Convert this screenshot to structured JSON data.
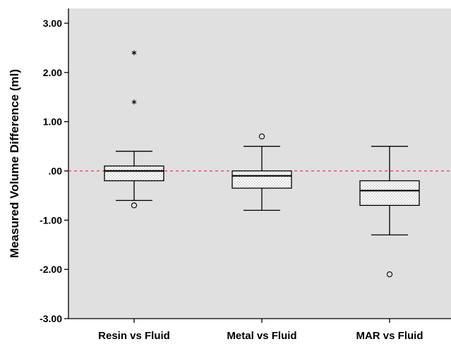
{
  "chart_data": {
    "type": "box",
    "ylabel": "Measured Volume Difference (ml)",
    "ylim": [
      -3,
      3.3
    ],
    "yticks": [
      3,
      2,
      1,
      0,
      -1,
      -2,
      -3
    ],
    "ytick_labels": [
      "3.00",
      "2.00",
      "1.00",
      ".00",
      "-1.00",
      "-2.00",
      "-3.00"
    ],
    "categories": [
      "Resin vs Fluid",
      "Metal vs Fluid",
      "MAR vs Fluid"
    ],
    "boxes": [
      {
        "whisker_low": -0.6,
        "q1": -0.2,
        "median": 0.0,
        "q3": 0.1,
        "whisker_high": 0.4,
        "outliers": [
          -0.7
        ],
        "extremes": [
          1.4,
          2.4
        ]
      },
      {
        "whisker_low": -0.8,
        "q1": -0.35,
        "median": -0.1,
        "q3": 0.0,
        "whisker_high": 0.5,
        "outliers": [
          0.7
        ],
        "extremes": []
      },
      {
        "whisker_low": -1.3,
        "q1": -0.7,
        "median": -0.4,
        "q3": -0.2,
        "whisker_high": 0.5,
        "outliers": [
          -2.1
        ],
        "extremes": []
      }
    ],
    "reference_line": {
      "y": 0.0,
      "style": "dashed",
      "color": "#e04040"
    },
    "colors": {
      "plot_background": "#e0e0e0",
      "box_fill": "#ffffff",
      "stipple": "#555555"
    },
    "grid": false
  }
}
